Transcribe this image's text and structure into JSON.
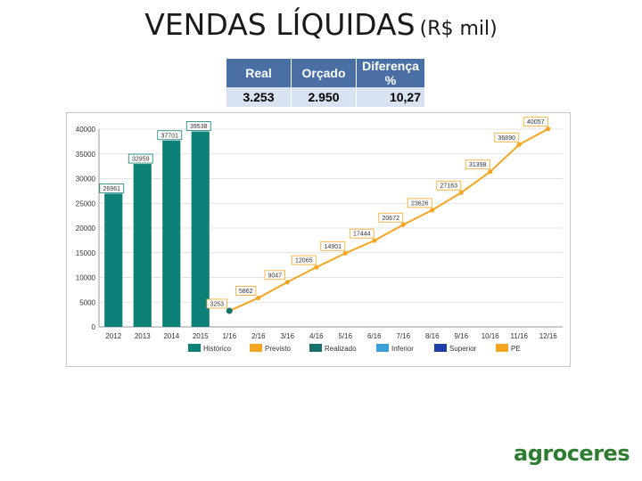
{
  "title": {
    "main": "VENDAS LÍQUIDAS",
    "unit": "(R$ mil)"
  },
  "summary_table": {
    "headers": [
      "Real",
      "Orçado",
      "Diferença %"
    ],
    "values": [
      "3.253",
      "2.950",
      "10,27"
    ]
  },
  "logo_text": "agroceres",
  "colors": {
    "historico": "#0d8077",
    "previsto": "#f5a623",
    "realizado": "#17706a",
    "inferior": "#3ba0d8",
    "superior": "#1f3fa8",
    "pe": "#f5a623",
    "table_header": "#4a6fa5",
    "table_row": "#d8e2f0",
    "brand": "#2e7d32"
  },
  "chart_data": {
    "type": "bar",
    "ylim": [
      0,
      40000
    ],
    "y_ticks": [
      "0",
      "5000",
      "10000",
      "15000",
      "20000",
      "25000",
      "30000",
      "35000",
      "40000"
    ],
    "categories": [
      "2012",
      "2013",
      "2014",
      "2015",
      "1/16",
      "2/16",
      "3/16",
      "4/16",
      "5/16",
      "6/16",
      "7/16",
      "8/16",
      "9/16",
      "10/16",
      "11/16",
      "12/16"
    ],
    "legend": [
      "Histórico",
      "Previsto",
      "Realizado",
      "Inferior",
      "Superior",
      "PE"
    ],
    "historico": {
      "categories": [
        "2012",
        "2013",
        "2014",
        "2015"
      ],
      "values": [
        26961,
        32959,
        37701,
        39538
      ],
      "labels": [
        "26961",
        "32959",
        "37701",
        "39538"
      ]
    },
    "previsto": {
      "x": [
        "1/16",
        "2/16",
        "3/16",
        "4/16",
        "5/16",
        "6/16",
        "7/16",
        "8/16",
        "9/16",
        "10/16",
        "11/16",
        "12/16"
      ],
      "values": [
        3253,
        5862,
        9047,
        12065,
        14901,
        17444,
        20672,
        23626,
        27163,
        31398,
        36890,
        40057
      ],
      "labels": [
        "3253",
        "5862",
        "9047",
        "12065",
        "14901",
        "17444",
        "20672",
        "23626",
        "27163",
        "31398",
        "36890",
        "40057"
      ]
    },
    "realizado": {
      "x": [
        "1/16"
      ],
      "values": [
        3253
      ]
    }
  }
}
